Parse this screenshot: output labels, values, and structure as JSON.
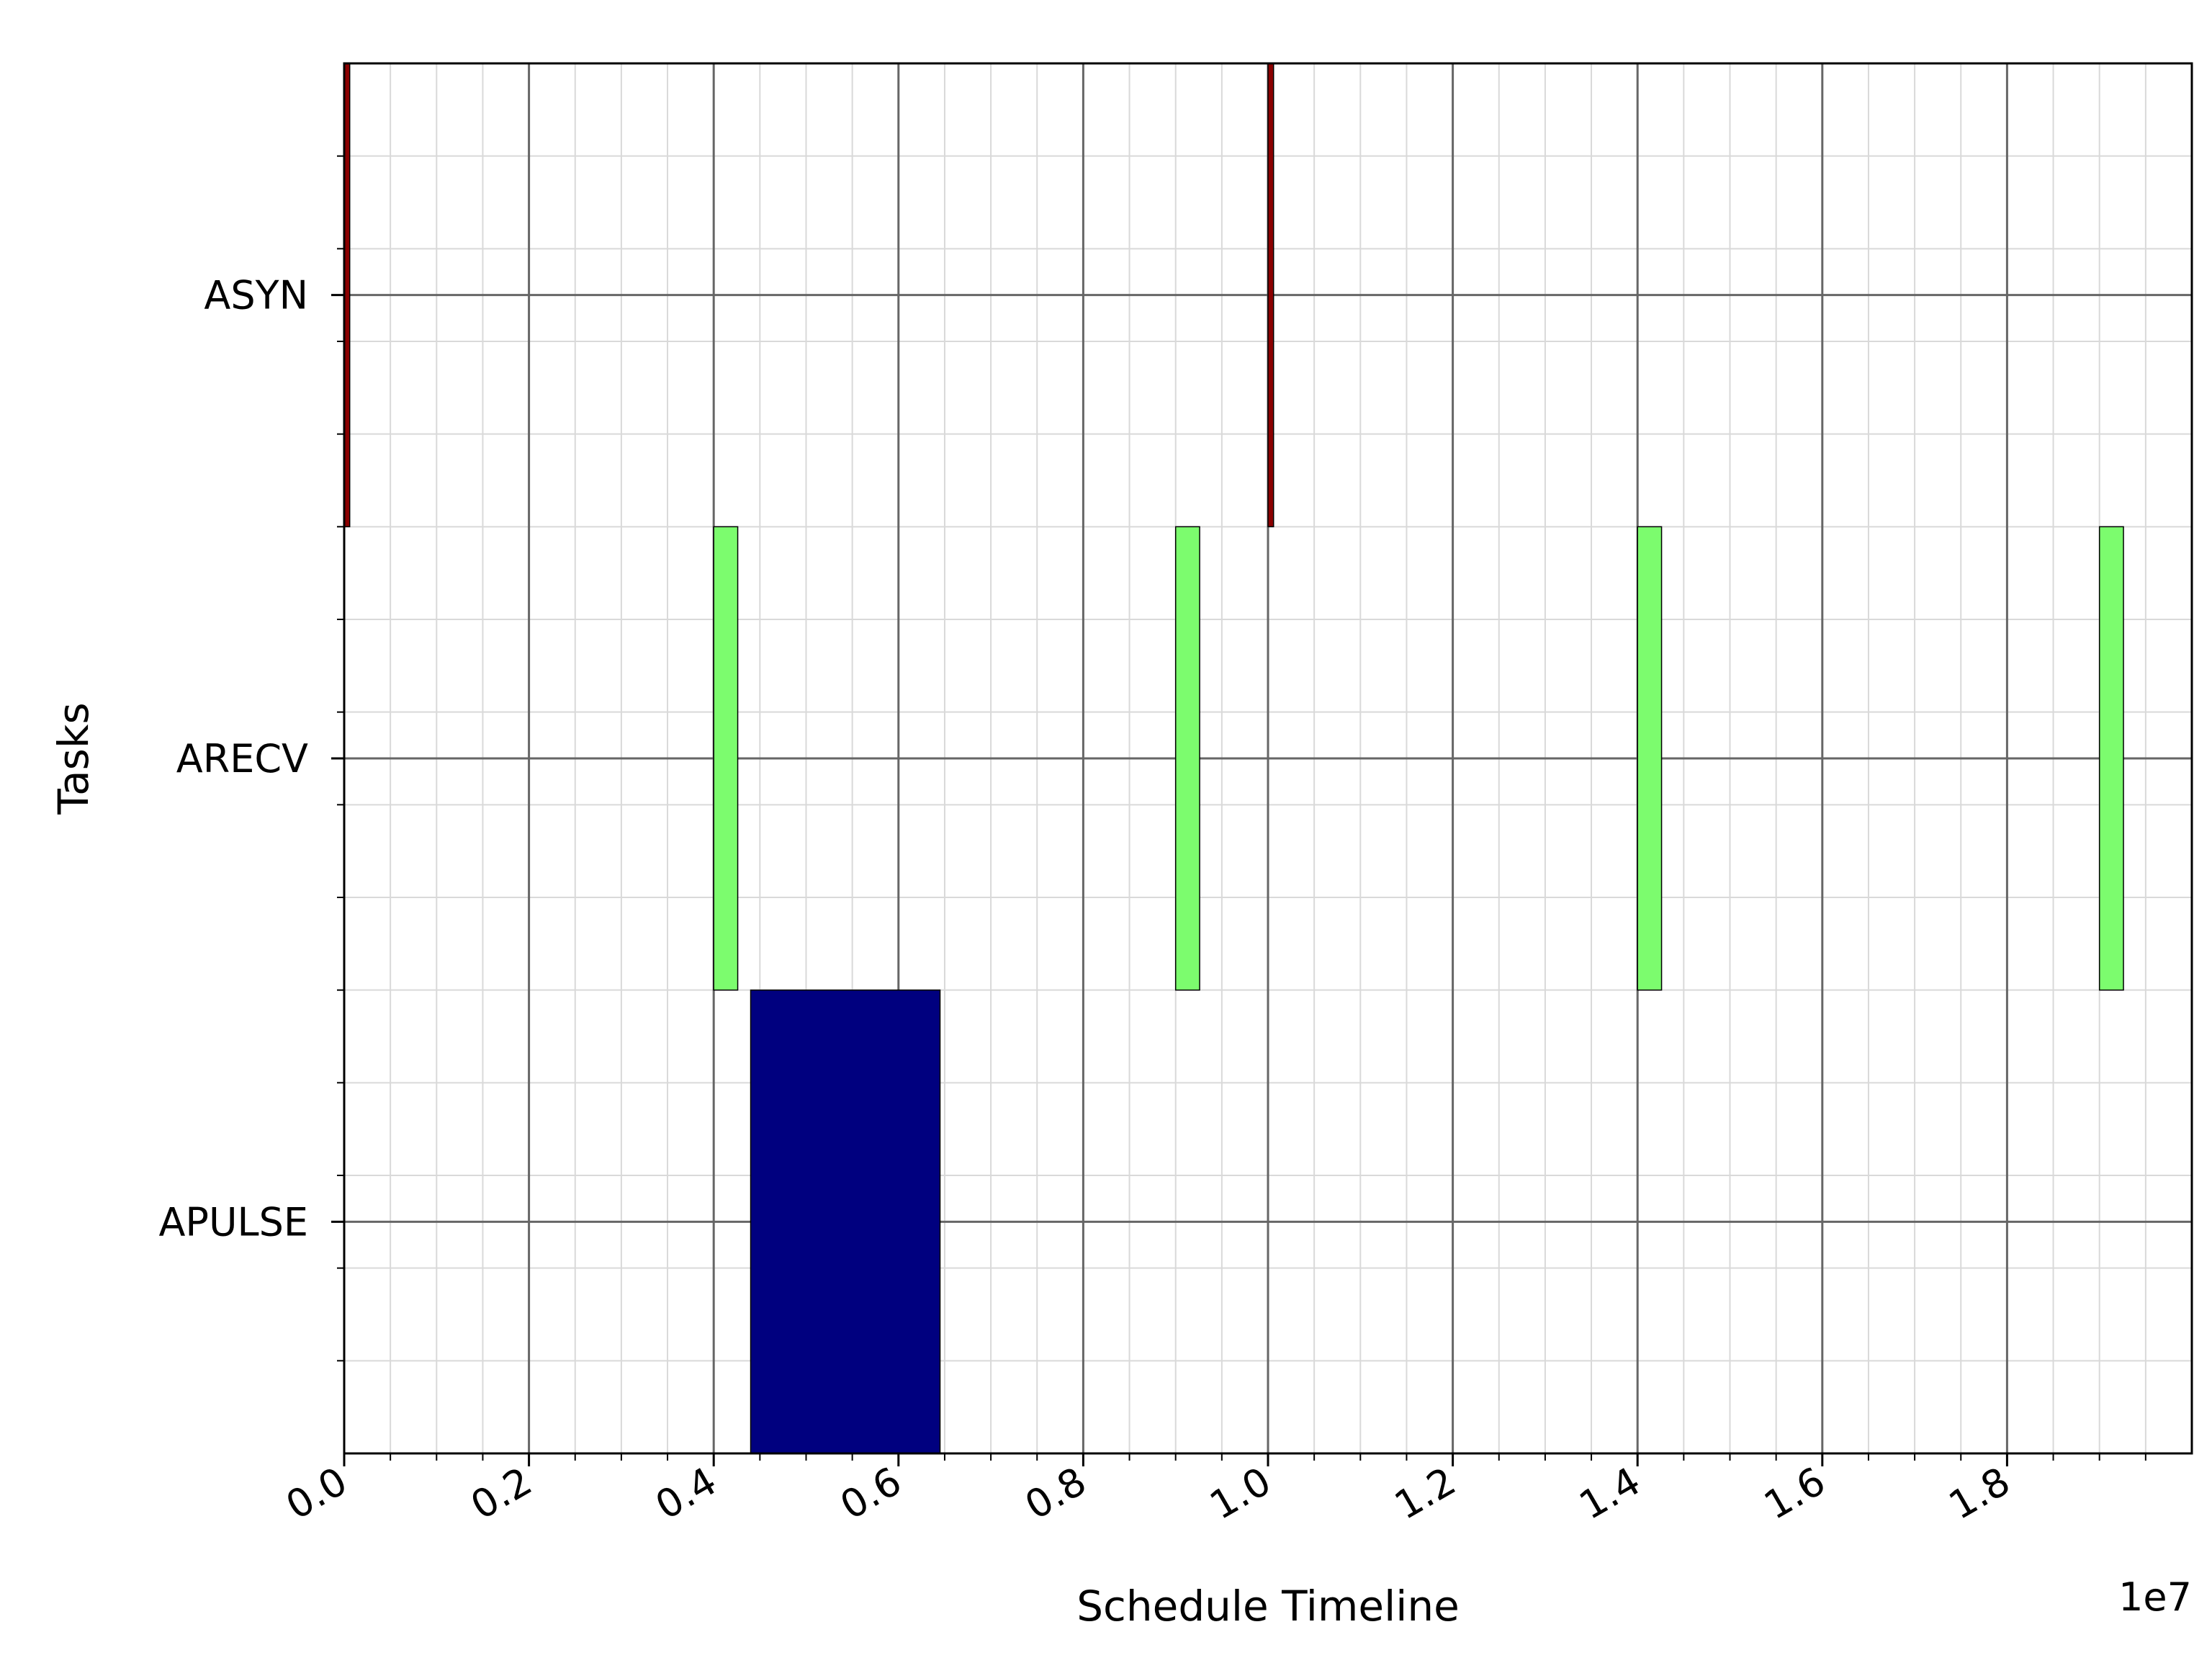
{
  "chart_data": {
    "type": "gantt",
    "title": "",
    "xlabel": "Schedule Timeline",
    "ylabel": "Tasks",
    "x_offset_label": "1e7",
    "xlim": [
      0,
      20000000
    ],
    "x_ticks": [
      0,
      2000000,
      4000000,
      6000000,
      8000000,
      10000000,
      12000000,
      14000000,
      16000000,
      18000000
    ],
    "x_tick_labels": [
      "0.0",
      "0.2",
      "0.4",
      "0.6",
      "0.8",
      "1.0",
      "1.2",
      "1.4",
      "1.6",
      "1.8"
    ],
    "x_minor_step": 500000,
    "y_categories": [
      "ASYN",
      "ARECV",
      "APULSE"
    ],
    "grid": "major and minor",
    "tasks": [
      {
        "name": "ASYN",
        "color": "#8b0000",
        "bars": [
          {
            "start": 0,
            "end": 60000
          },
          {
            "start": 10000000,
            "end": 10060000
          }
        ]
      },
      {
        "name": "ARECV",
        "color": "#7cfc6e",
        "bars": [
          {
            "start": 4000000,
            "end": 4260000
          },
          {
            "start": 9000000,
            "end": 9260000
          },
          {
            "start": 14000000,
            "end": 14260000
          },
          {
            "start": 19000000,
            "end": 19260000
          }
        ]
      },
      {
        "name": "APULSE",
        "color": "#00007f",
        "bars": [
          {
            "start": 4400000,
            "end": 6450000
          }
        ]
      }
    ]
  }
}
